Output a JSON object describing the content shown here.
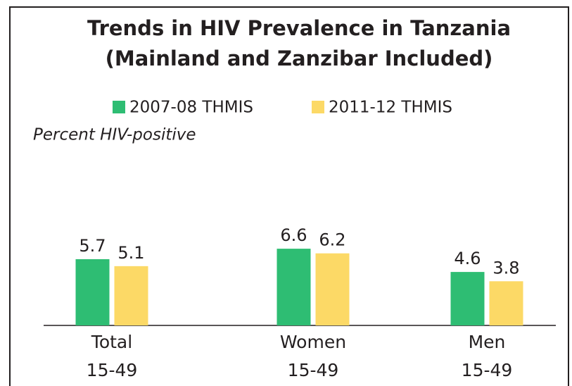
{
  "chart_data": {
    "type": "bar",
    "title": [
      "Trends in HIV Prevalence in Tanzania",
      "(Mainland and Zanzibar Included)"
    ],
    "subtitle": "Percent HIV-positive",
    "categories": [
      [
        "Total",
        "15-49"
      ],
      [
        "Women",
        "15-49"
      ],
      [
        "Men",
        "15-49"
      ]
    ],
    "series": [
      {
        "name": "2007-08 THMIS",
        "color": "#2ebd73",
        "values": [
          5.7,
          6.6,
          4.6
        ]
      },
      {
        "name": "2011-12 THMIS",
        "color": "#fcd966",
        "values": [
          5.1,
          6.2,
          3.8
        ]
      }
    ],
    "ylim": [
      0,
      10
    ],
    "legend": "top"
  }
}
